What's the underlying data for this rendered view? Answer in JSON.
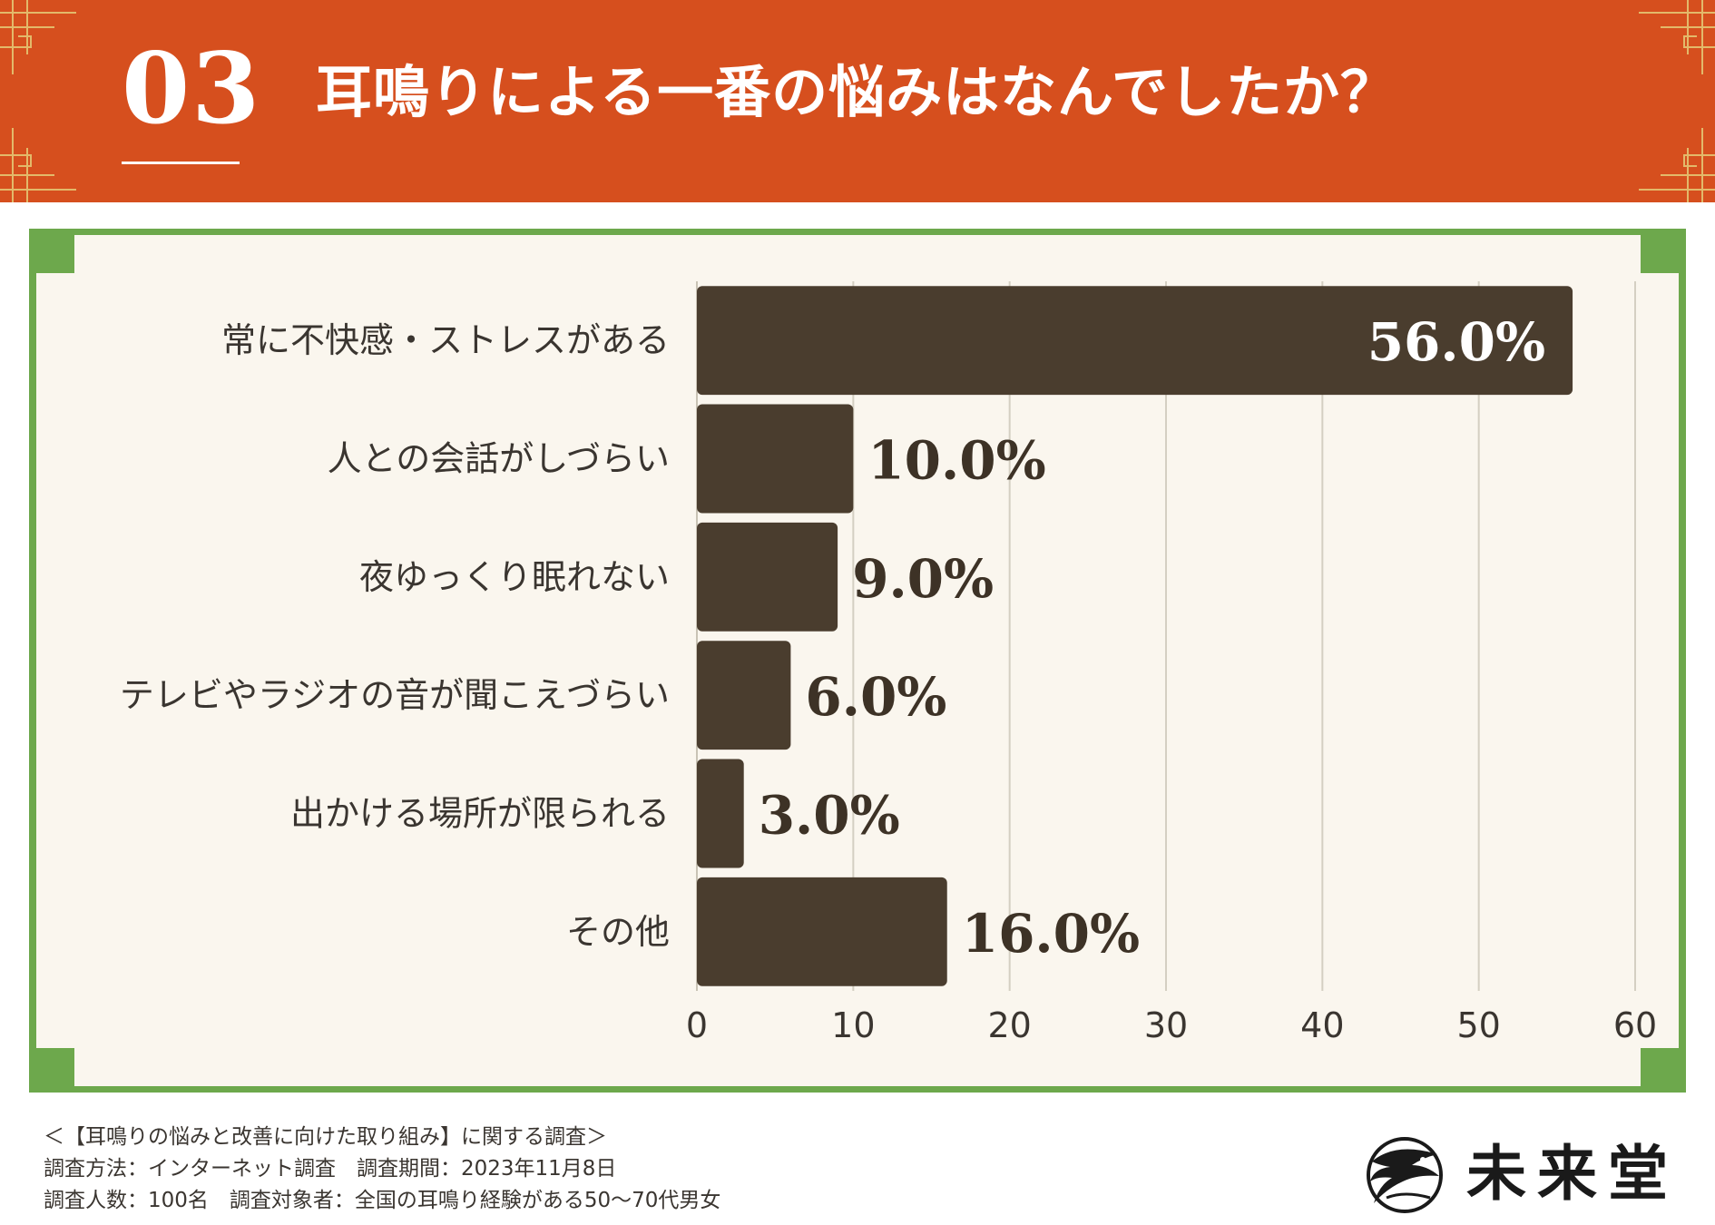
{
  "header": {
    "number": "03",
    "title": "耳鳴りによる一番の悩みはなんでしたか？"
  },
  "colors": {
    "header_bg": "#d64f1e",
    "frame_green": "#6da84c",
    "panel_bg": "#faf6ee",
    "bar": "#4a3d2e",
    "gold": "#e3b96a"
  },
  "chart_data": {
    "type": "bar",
    "orientation": "horizontal",
    "title": "耳鳴りによる一番の悩みはなんでしたか？",
    "categories": [
      "常に不快感・ストレスがある",
      "人との会話がしづらい",
      "夜ゆっくり眠れない",
      "テレビやラジオの音が聞こえづらい",
      "出かける場所が限られる",
      "その他"
    ],
    "values": [
      56.0,
      10.0,
      9.0,
      6.0,
      3.0,
      16.0
    ],
    "value_labels": [
      "56.0%",
      "10.0%",
      "9.0%",
      "6.0%",
      "3.0%",
      "16.0%"
    ],
    "xlim": [
      0,
      60
    ],
    "xticks": [
      0,
      10,
      20,
      30,
      40,
      50,
      60
    ],
    "xlabel": "",
    "ylabel": "",
    "grid": true,
    "legend": "none"
  },
  "footer": {
    "survey_title": "＜【耳鳴りの悩みと改善に向けた取り組み】に関する調査＞",
    "line2": "調査方法：インターネット調査　調査期間：2023年11月8日",
    "line3": "調査人数：100名　調査対象者：全国の耳鳴り経験がある50〜70代男女"
  },
  "logo": {
    "name": "未来堂",
    "icon": "crane-emblem-icon"
  }
}
